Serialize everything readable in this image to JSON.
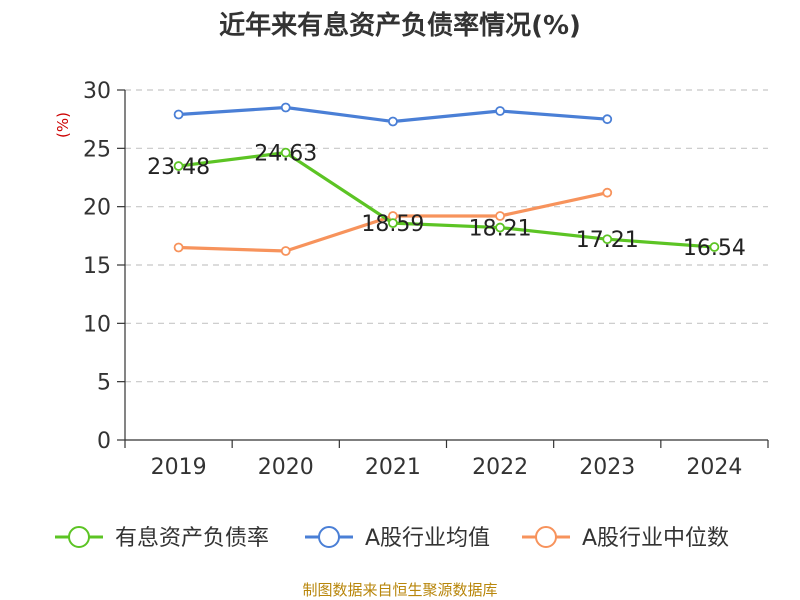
{
  "chart_data": {
    "type": "line",
    "title": "近年来有息资产负债率情况(%)",
    "unit_label": "(%)",
    "categories": [
      "2019",
      "2020",
      "2021",
      "2022",
      "2023",
      "2024"
    ],
    "ylim": [
      0,
      30
    ],
    "yticks": [
      0,
      5,
      10,
      15,
      20,
      25,
      30
    ],
    "grid": true,
    "legend_position": "bottom",
    "series": [
      {
        "name": "有息资产负债率",
        "color": "#5cc424",
        "values": [
          23.48,
          24.63,
          18.59,
          18.21,
          17.21,
          16.54
        ],
        "labels": [
          "23.48",
          "24.63",
          "18.59",
          "18.21",
          "17.21",
          "16.54"
        ]
      },
      {
        "name": "A股行业均值",
        "color": "#4a7fd6",
        "values": [
          27.9,
          28.5,
          27.3,
          28.2,
          27.5,
          null
        ]
      },
      {
        "name": "A股行业中位数",
        "color": "#f7935c",
        "values": [
          16.5,
          16.2,
          19.2,
          19.2,
          21.2,
          null
        ]
      }
    ],
    "source": "制图数据来自恒生聚源数据库"
  }
}
